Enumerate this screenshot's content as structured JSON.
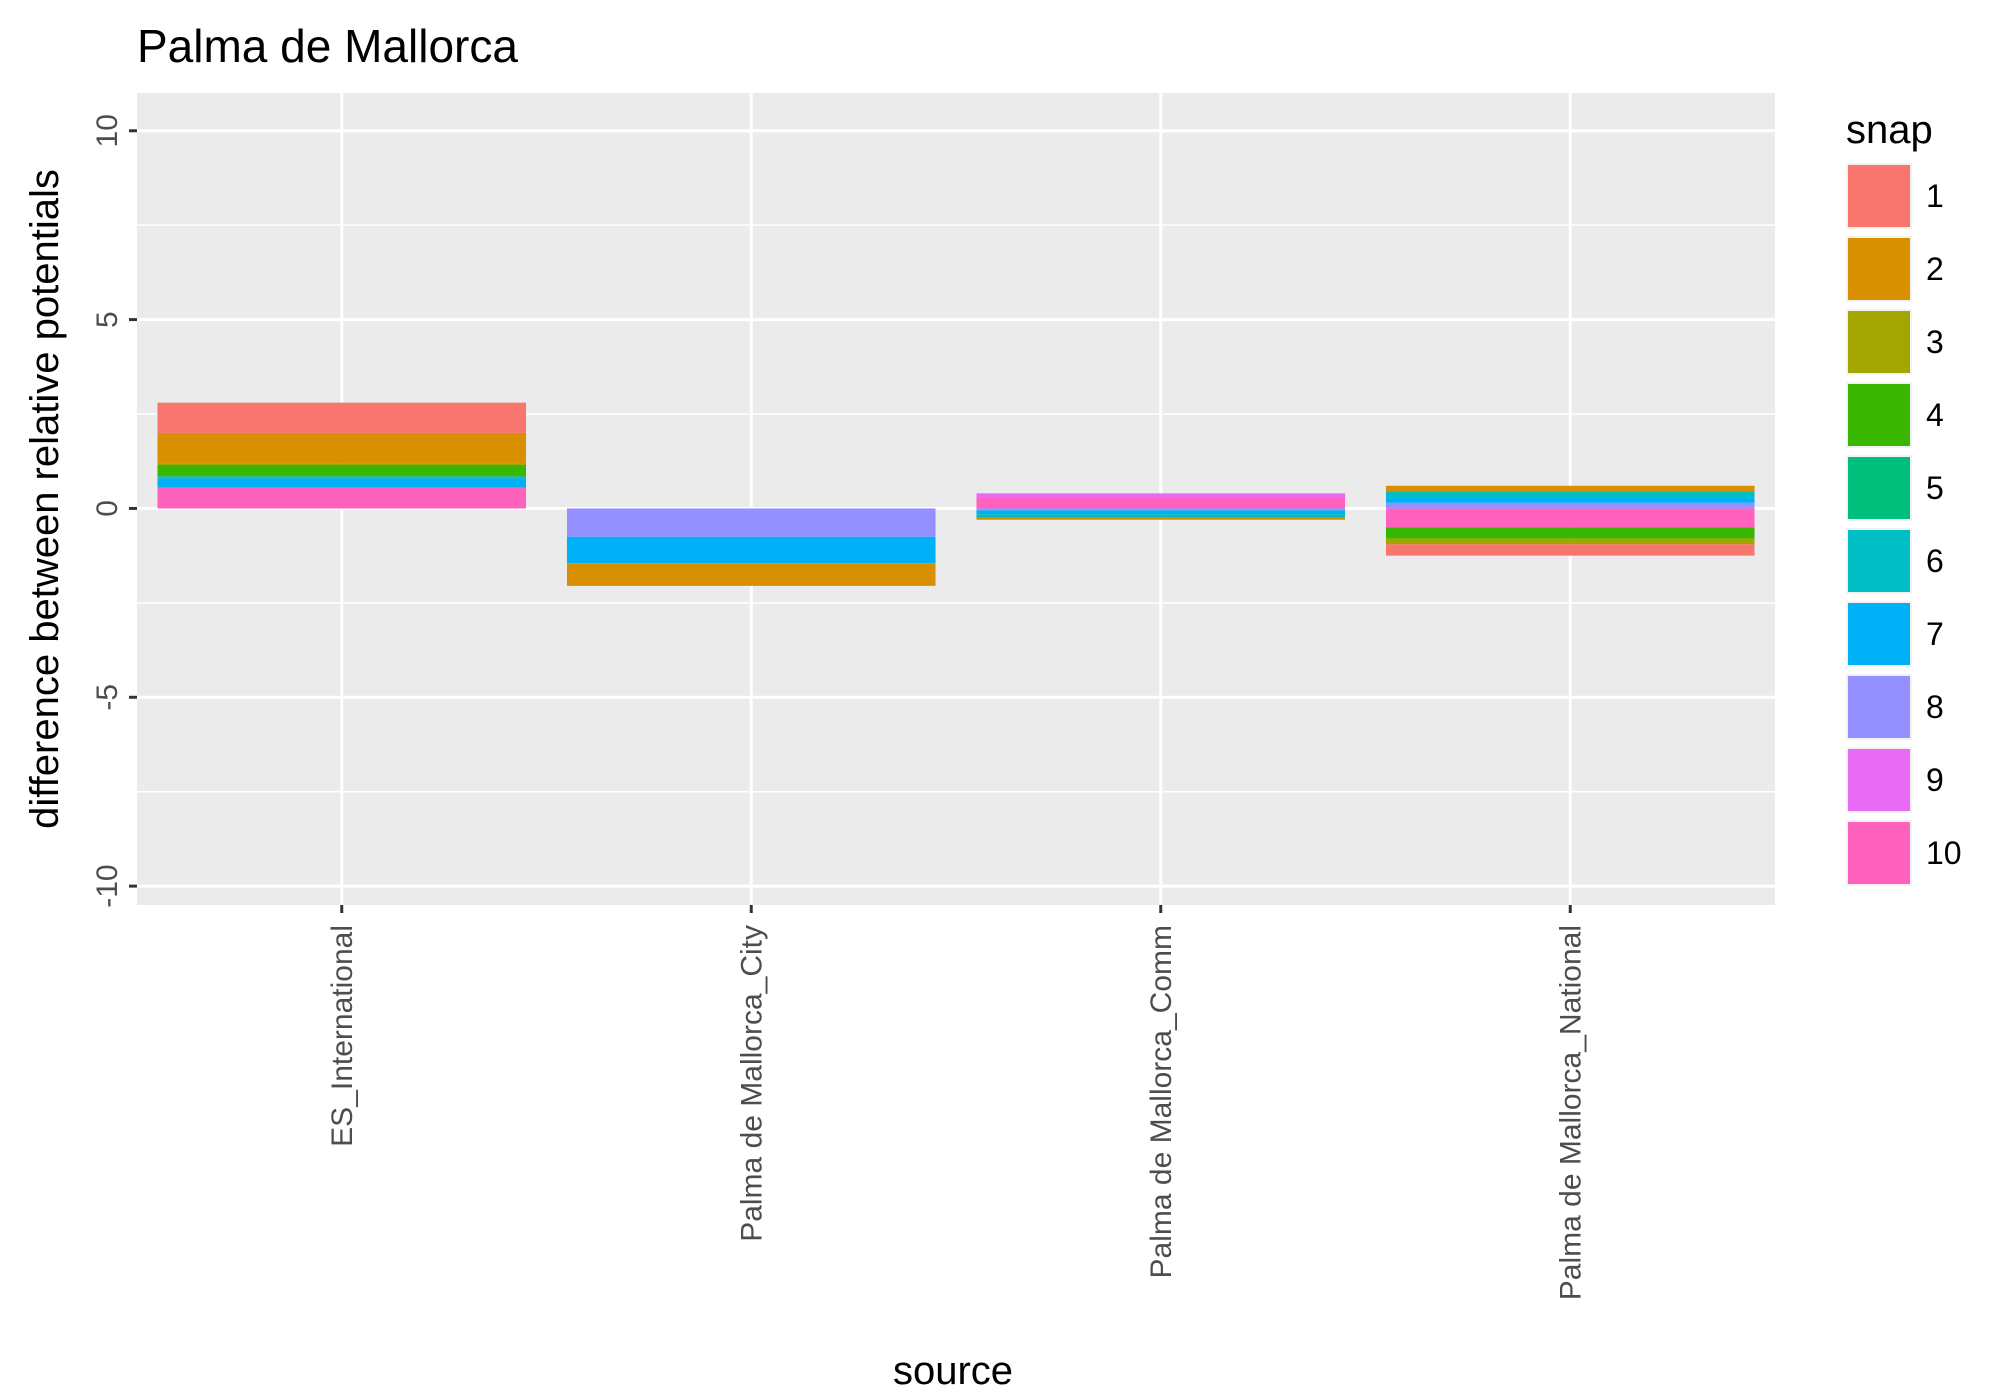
{
  "chart_data": {
    "type": "bar",
    "stacked": true,
    "title": "Palma de Mallorca",
    "xlabel": "source",
    "ylabel": "difference between relative potentials",
    "ylim": [
      -10.5,
      11.0
    ],
    "yticks": [
      -10,
      -5,
      0,
      5,
      10
    ],
    "grid": true,
    "legend_position": "right",
    "legend_title": "snap",
    "categories": [
      "ES_International",
      "Palma de Mallorca_City",
      "Palma de Mallorca_Comm",
      "Palma de Mallorca_National"
    ],
    "series": [
      {
        "name": "1",
        "color": "#F8766D",
        "values": [
          0.8,
          0.0,
          0.0,
          -0.3
        ]
      },
      {
        "name": "2",
        "color": "#D89000",
        "values": [
          0.8,
          -0.6,
          -0.05,
          0.15
        ]
      },
      {
        "name": "3",
        "color": "#A3A500",
        "values": [
          0.05,
          0.0,
          0.0,
          -0.15
        ]
      },
      {
        "name": "4",
        "color": "#39B600",
        "values": [
          0.3,
          0.0,
          0.0,
          -0.3
        ]
      },
      {
        "name": "5",
        "color": "#00BF7D",
        "values": [
          0.0,
          0.0,
          0.0,
          0.0
        ]
      },
      {
        "name": "6",
        "color": "#00BFC4",
        "values": [
          0.05,
          0.0,
          -0.1,
          0.15
        ]
      },
      {
        "name": "7",
        "color": "#00B0F6",
        "values": [
          0.25,
          -0.7,
          -0.1,
          0.15
        ]
      },
      {
        "name": "8",
        "color": "#9590FF",
        "values": [
          0.0,
          -0.75,
          -0.05,
          0.15
        ]
      },
      {
        "name": "9",
        "color": "#E76BF3",
        "values": [
          0.0,
          0.0,
          0.1,
          0.0
        ]
      },
      {
        "name": "10",
        "color": "#FF62BC",
        "values": [
          0.55,
          0.0,
          0.3,
          -0.5
        ]
      }
    ]
  }
}
